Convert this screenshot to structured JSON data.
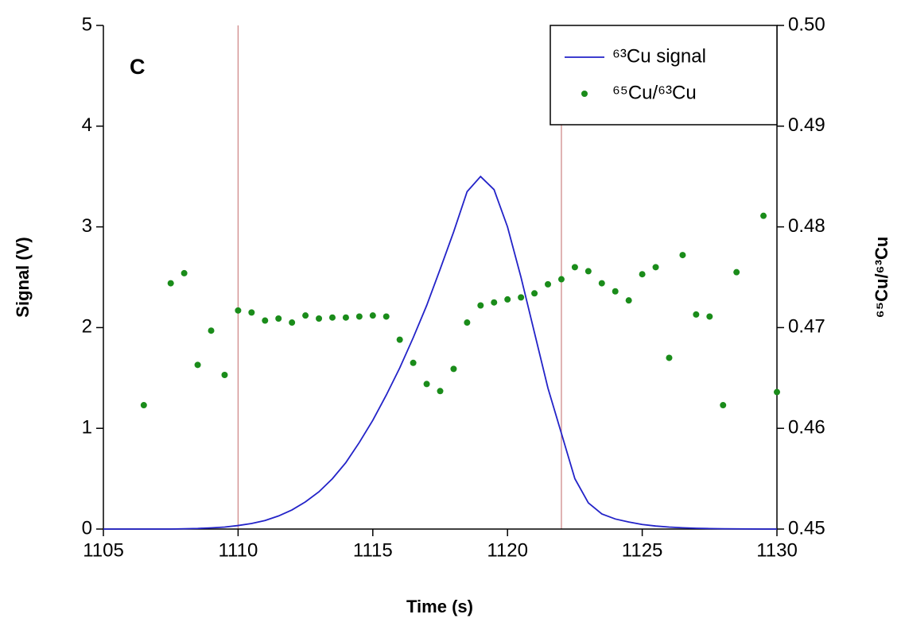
{
  "chart_data": {
    "type": "line",
    "panel_label": "C",
    "xlabel": "Time (s)",
    "ylabel": "Signal (V)",
    "y2label": "⁶⁵Cu/⁶³Cu",
    "xlim": [
      1105,
      1130
    ],
    "xticks": [
      1105,
      1110,
      1115,
      1120,
      1125,
      1130
    ],
    "ylim": [
      0,
      5
    ],
    "yticks": [
      0,
      1,
      2,
      3,
      4,
      5
    ],
    "y2lim": [
      0.45,
      0.5
    ],
    "y2ticks": [
      0.45,
      0.46,
      0.47,
      0.48,
      0.49,
      {
        "value": 0.5,
        "label": "0.50"
      }
    ],
    "vlines": [
      1110,
      1122
    ],
    "vline_color": "#d08a8a",
    "legend": "upper right",
    "series": [
      {
        "name": "⁶³Cu signal",
        "type": "line",
        "color": "#2323c8",
        "x": [
          1105,
          1105.5,
          1106,
          1106.5,
          1107,
          1107.5,
          1108,
          1108.5,
          1109,
          1109.5,
          1110,
          1110.5,
          1111,
          1111.5,
          1112,
          1112.5,
          1113,
          1113.5,
          1114,
          1114.5,
          1115,
          1115.5,
          1116,
          1116.5,
          1117,
          1117.5,
          1118,
          1118.5,
          1119,
          1119.5,
          1120,
          1120.5,
          1121,
          1121.5,
          1122,
          1122.5,
          1123,
          1123.5,
          1124,
          1124.5,
          1125,
          1125.5,
          1126,
          1126.5,
          1127,
          1127.5,
          1128,
          1128.5,
          1129,
          1129.5,
          1130
        ],
        "values": [
          0,
          0,
          0,
          0,
          0,
          0,
          0.003,
          0.006,
          0.012,
          0.02,
          0.035,
          0.055,
          0.085,
          0.13,
          0.19,
          0.27,
          0.37,
          0.5,
          0.66,
          0.86,
          1.08,
          1.33,
          1.6,
          1.9,
          2.22,
          2.58,
          2.95,
          3.35,
          3.5,
          3.37,
          3.0,
          2.5,
          1.95,
          1.4,
          0.95,
          0.5,
          0.26,
          0.15,
          0.1,
          0.07,
          0.045,
          0.03,
          0.02,
          0.013,
          0.008,
          0.005,
          0.003,
          0.002,
          0.001,
          0,
          0
        ]
      },
      {
        "name": "⁶⁵Cu/⁶³Cu",
        "type": "scatter",
        "axis": "y2",
        "color": "#1a8c1a",
        "x": [
          1106.5,
          1107.5,
          1108,
          1108.5,
          1109,
          1109.5,
          1110,
          1110.5,
          1111,
          1111.5,
          1112,
          1112.5,
          1113,
          1113.5,
          1114,
          1114.5,
          1115,
          1115.5,
          1116,
          1116.5,
          1117,
          1117.5,
          1118,
          1118.5,
          1119,
          1119.5,
          1120,
          1120.5,
          1121,
          1121.5,
          1122,
          1122.5,
          1123,
          1123.5,
          1124,
          1124.5,
          1125,
          1125.5,
          1126,
          1126.5,
          1127,
          1127.5,
          1128,
          1128.5,
          1129.5,
          1130
        ],
        "values": [
          0.4623,
          0.4744,
          0.4754,
          0.4663,
          0.4697,
          0.4653,
          0.4717,
          0.4715,
          0.4707,
          0.4709,
          0.4705,
          0.4712,
          0.4709,
          0.471,
          0.471,
          0.4711,
          0.4712,
          0.4711,
          0.4688,
          0.4665,
          0.4644,
          0.4637,
          0.4659,
          0.4705,
          0.4722,
          0.4725,
          0.4728,
          0.473,
          0.4734,
          0.4743,
          0.4748,
          0.476,
          0.4756,
          0.4744,
          0.4736,
          0.4727,
          0.4753,
          0.476,
          0.467,
          0.4772,
          0.4713,
          0.4711,
          0.4623,
          0.4755,
          0.4811,
          0.4636
        ]
      }
    ]
  }
}
